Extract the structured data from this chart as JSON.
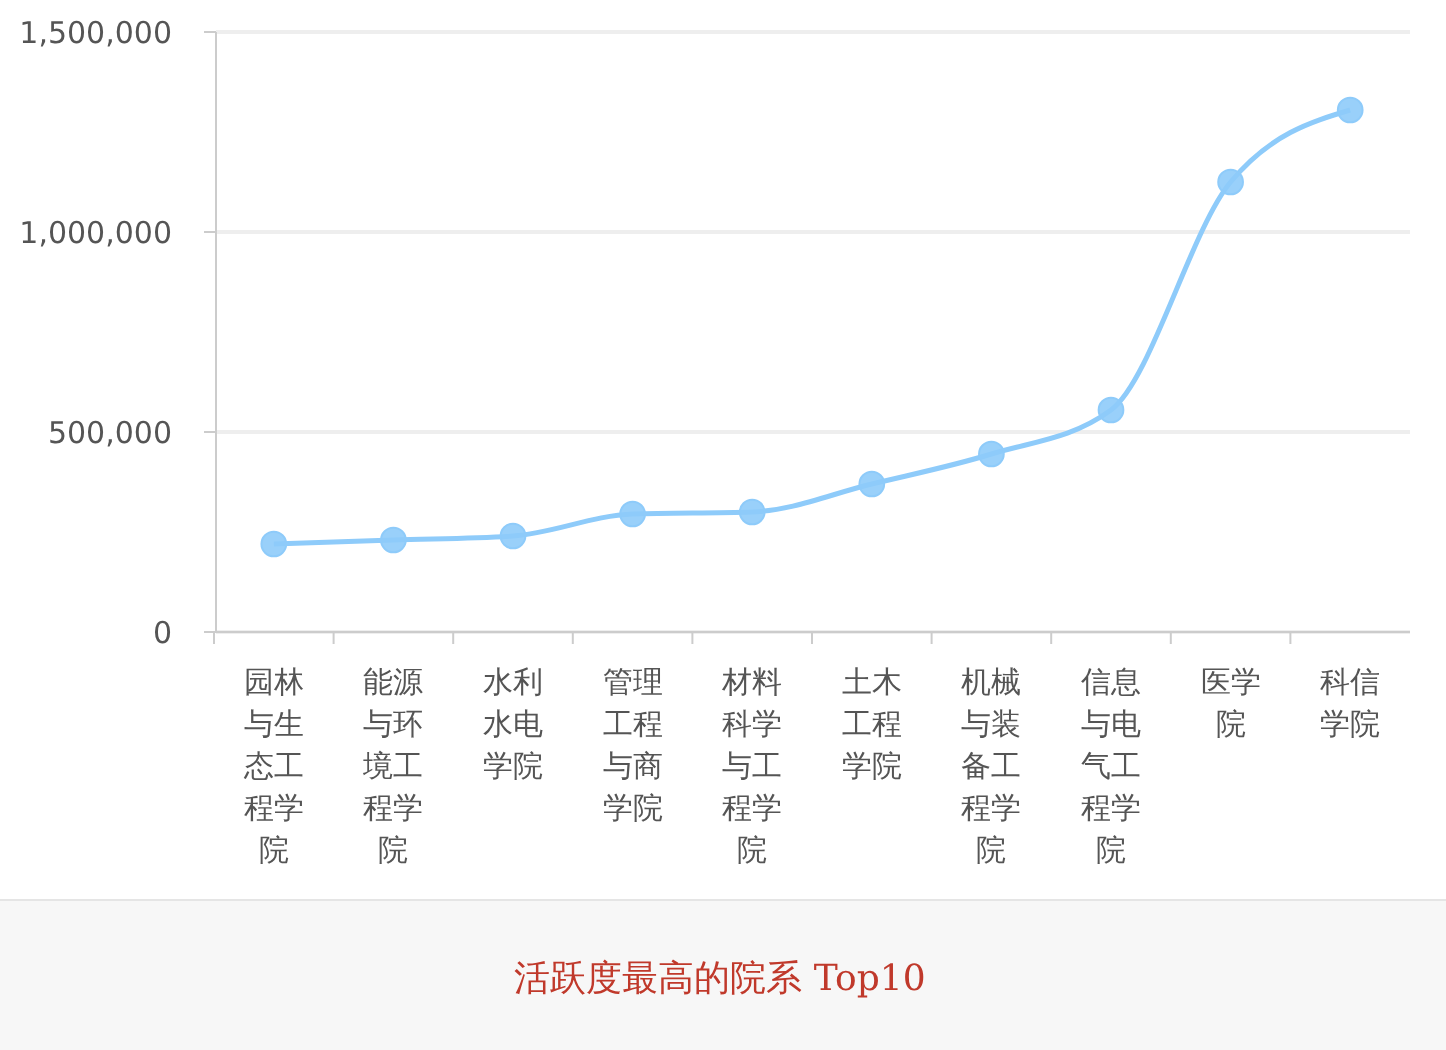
{
  "chart_data": {
    "type": "line",
    "title": "活跃度最高的院系 Top10",
    "categories": [
      "园林与生态工程学院",
      "能源与环境工程学院",
      "水利水电学院",
      "管理工程与商学院",
      "材料科学与工程学院",
      "土木工程学院",
      "机械与装备工程学院",
      "信息与电气工程学院",
      "医学院",
      "科信学院"
    ],
    "values": [
      220000,
      230000,
      240000,
      295000,
      300000,
      370000,
      445000,
      555000,
      1125000,
      1305000
    ],
    "color": "#8ecbfa",
    "marker": "circle",
    "line_style": "solid",
    "grid": "y",
    "ylim": [
      0,
      1500000
    ],
    "yticks": [
      0,
      {
        "value": 500000,
        "label": "500,000"
      },
      {
        "value": 1000000,
        "label": "1,000,000"
      },
      {
        "value": 1500000,
        "label": "1,500,000"
      }
    ]
  }
}
